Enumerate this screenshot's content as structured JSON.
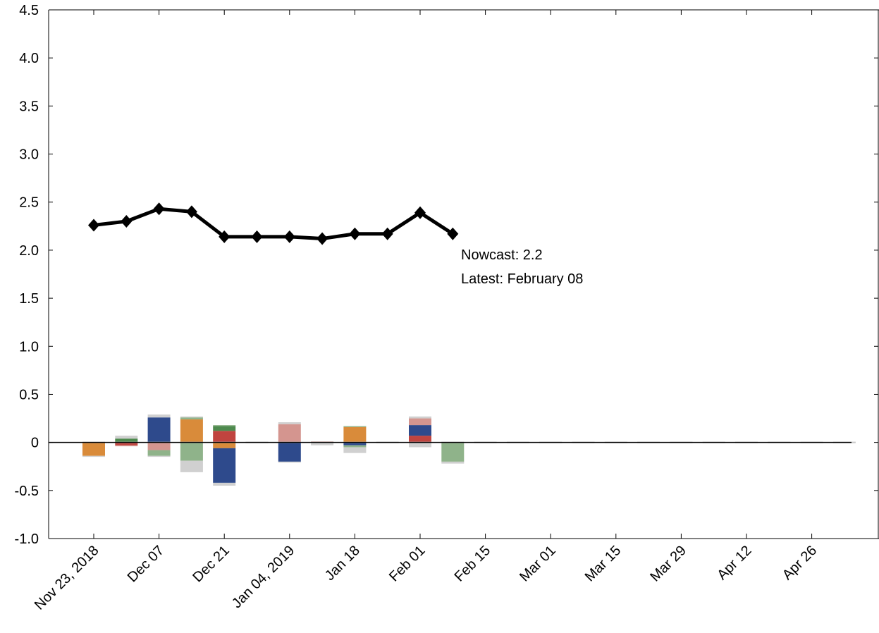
{
  "chart_data": {
    "type": "bar",
    "combo": "stacked bar + line",
    "ylim": [
      -1.0,
      4.5
    ],
    "y_ticks": [
      "-1.0",
      "-0.5",
      "0",
      "0.5",
      "1.0",
      "1.5",
      "2.0",
      "2.5",
      "3.0",
      "3.5",
      "4.0",
      "4.5"
    ],
    "y_tick_values": [
      -1.0,
      -0.5,
      0,
      0.5,
      1.0,
      1.5,
      2.0,
      2.5,
      3.0,
      3.5,
      4.0,
      4.5
    ],
    "x_tick_labels": [
      "Nov 23, 2018",
      "Dec 07",
      "Dec 21",
      "Jan 04, 2019",
      "Jan 18",
      "Feb 01",
      "Feb 15",
      "Mar 01",
      "Mar 15",
      "Mar 29",
      "Apr 12",
      "Apr 26"
    ],
    "week_count": 24,
    "grid": false,
    "line_series": {
      "color": "#000000",
      "values": [
        2.26,
        2.3,
        2.43,
        2.4,
        2.14,
        2.14,
        2.14,
        2.12,
        2.17,
        2.17,
        2.39,
        2.17
      ]
    },
    "bar_colors": {
      "orange": "#d98b3a",
      "green": "#4e8a4e",
      "red": "#c0443f",
      "blue": "#2e4a8c",
      "pink": "#d4958f",
      "lightgreen": "#8fb38a",
      "gray": "#d0d0d0"
    },
    "bars": [
      [
        {
          "c": "orange",
          "v": -0.14
        },
        {
          "c": "gray",
          "v": -0.01
        }
      ],
      [
        {
          "c": "green",
          "v": 0.04
        },
        {
          "c": "gray",
          "v": 0.03
        },
        {
          "c": "red",
          "v": -0.03
        },
        {
          "c": "pink",
          "v": -0.01
        }
      ],
      [
        {
          "c": "blue",
          "v": 0.26
        },
        {
          "c": "gray",
          "v": 0.03
        },
        {
          "c": "pink",
          "v": -0.08
        },
        {
          "c": "lightgreen",
          "v": -0.06
        },
        {
          "c": "gray",
          "v": -0.01
        }
      ],
      [
        {
          "c": "orange",
          "v": 0.24
        },
        {
          "c": "lightgreen",
          "v": 0.02
        },
        {
          "c": "gray",
          "v": 0.01
        },
        {
          "c": "lightgreen",
          "v": -0.19
        },
        {
          "c": "gray",
          "v": -0.12
        }
      ],
      [
        {
          "c": "red",
          "v": 0.12
        },
        {
          "c": "green",
          "v": 0.05
        },
        {
          "c": "lightgreen",
          "v": 0.01
        },
        {
          "c": "orange",
          "v": -0.06
        },
        {
          "c": "blue",
          "v": -0.36
        },
        {
          "c": "gray",
          "v": -0.03
        }
      ],
      [],
      [
        {
          "c": "pink",
          "v": 0.19
        },
        {
          "c": "gray",
          "v": 0.02
        },
        {
          "c": "blue",
          "v": -0.2
        },
        {
          "c": "gray",
          "v": -0.01
        }
      ],
      [
        {
          "c": "pink",
          "v": 0.01
        },
        {
          "c": "gray",
          "v": -0.03
        }
      ],
      [
        {
          "c": "orange",
          "v": 0.16
        },
        {
          "c": "lightgreen",
          "v": 0.01
        },
        {
          "c": "blue",
          "v": -0.03
        },
        {
          "c": "lightgreen",
          "v": -0.02
        },
        {
          "c": "gray",
          "v": -0.06
        }
      ],
      [],
      [
        {
          "c": "red",
          "v": 0.07
        },
        {
          "c": "blue",
          "v": 0.11
        },
        {
          "c": "pink",
          "v": 0.07
        },
        {
          "c": "gray",
          "v": 0.02
        },
        {
          "c": "gray",
          "v": -0.05
        }
      ],
      [
        {
          "c": "lightgreen",
          "v": -0.2
        },
        {
          "c": "gray",
          "v": -0.02
        }
      ]
    ]
  },
  "annotation": {
    "line1": "Nowcast:  2.2",
    "line2": "Latest: February 08"
  }
}
